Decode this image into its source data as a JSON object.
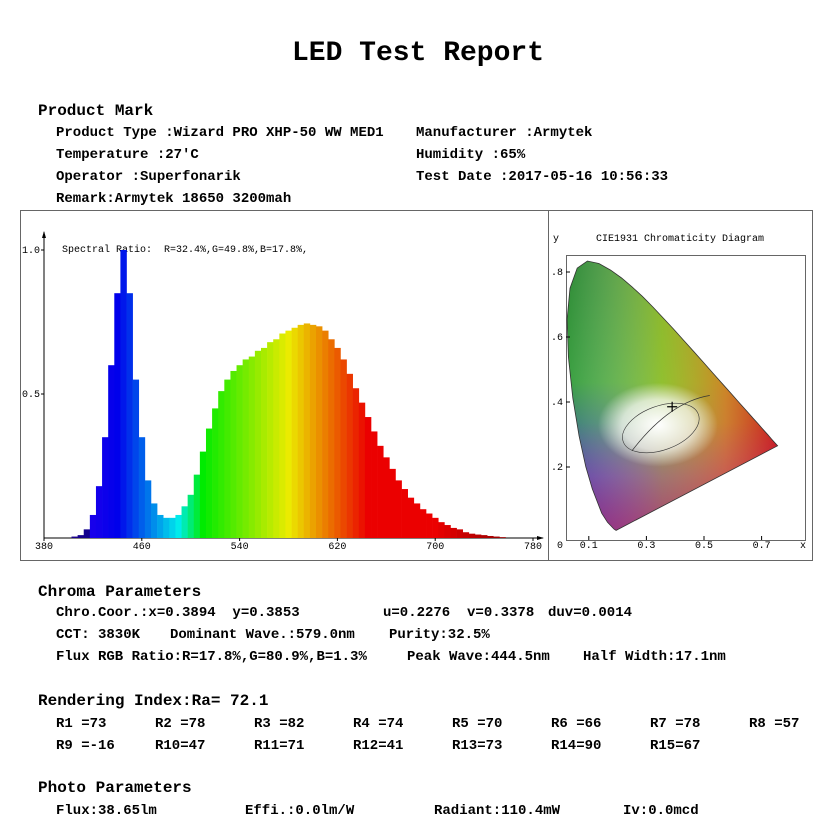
{
  "header": {
    "title": "LED Test Report"
  },
  "product": {
    "heading": "Product Mark",
    "product_type": "Product Type :Wizard PRO XHP-50 WW MED1",
    "manufacturer": "Manufacturer :Armytek",
    "temperature": "Temperature :27'C",
    "humidity": "Humidity :65%",
    "operator": "Operator :Superfonarik",
    "test_date": "Test Date :2017-05-16 10:56:33",
    "remark": "Remark:Armytek 18650 3200mah"
  },
  "chart_data": [
    {
      "type": "bar",
      "annotation": "Spectral Ratio:  R=32.4%,G=49.8%,B=17.8%,",
      "x": [
        380,
        385,
        390,
        395,
        400,
        405,
        410,
        415,
        420,
        425,
        430,
        435,
        440,
        445,
        450,
        455,
        460,
        465,
        470,
        475,
        480,
        485,
        490,
        495,
        500,
        505,
        510,
        515,
        520,
        525,
        530,
        535,
        540,
        545,
        550,
        555,
        560,
        565,
        570,
        575,
        580,
        585,
        590,
        595,
        600,
        605,
        610,
        615,
        620,
        625,
        630,
        635,
        640,
        645,
        650,
        655,
        660,
        665,
        670,
        675,
        680,
        685,
        690,
        695,
        700,
        705,
        710,
        715,
        720,
        725,
        730,
        735,
        740,
        745,
        750,
        755,
        760,
        765,
        770,
        775,
        780
      ],
      "values": [
        0,
        0,
        0,
        0,
        0,
        0.005,
        0.01,
        0.03,
        0.08,
        0.18,
        0.35,
        0.6,
        0.85,
        1.0,
        0.85,
        0.55,
        0.35,
        0.2,
        0.12,
        0.08,
        0.07,
        0.07,
        0.08,
        0.11,
        0.15,
        0.22,
        0.3,
        0.38,
        0.45,
        0.51,
        0.55,
        0.58,
        0.6,
        0.62,
        0.63,
        0.65,
        0.66,
        0.68,
        0.69,
        0.71,
        0.72,
        0.73,
        0.74,
        0.745,
        0.74,
        0.735,
        0.72,
        0.69,
        0.66,
        0.62,
        0.57,
        0.52,
        0.47,
        0.42,
        0.37,
        0.32,
        0.28,
        0.24,
        0.2,
        0.17,
        0.14,
        0.12,
        0.1,
        0.085,
        0.07,
        0.055,
        0.045,
        0.035,
        0.03,
        0.02,
        0.015,
        0.012,
        0.01,
        0.007,
        0.005,
        0.003,
        0,
        0,
        0,
        0,
        0
      ],
      "xlim": [
        380,
        780
      ],
      "ylim": [
        0,
        1
      ],
      "xticks": [
        380,
        460,
        540,
        620,
        700,
        780
      ],
      "yticks": [
        {
          "value": 1,
          "label": "1.0"
        },
        {
          "value": 0.5,
          "label": "0.5"
        }
      ]
    },
    {
      "type": "scatter",
      "title": "CIE1931 Chromaticity Diagram",
      "xlabel": "x",
      "ylabel": "y",
      "x": [
        0.3894
      ],
      "values": [
        0.3853
      ],
      "xticks": [
        0,
        0.1,
        0.3,
        0.5,
        0.7
      ],
      "yticks": [
        {
          "value": 0.8,
          "label": ".8"
        },
        {
          "value": 0.6,
          "label": ".6"
        },
        {
          "value": 0.4,
          "label": ".4"
        },
        {
          "value": 0.2,
          "label": ".2"
        }
      ]
    }
  ],
  "chroma": {
    "heading": "Chroma Parameters",
    "lines": [
      [
        "Chro.Coor.:x=0.3894  y=0.3853",
        "u=0.2276  v=0.3378",
        "duv=0.0014"
      ],
      [
        "CCT: 3830K",
        "Dominant Wave.:579.0nm",
        "Purity:32.5%"
      ],
      [
        "Flux RGB Ratio:R=17.8%,G=80.9%,B=1.3%",
        "Peak Wave:444.5nm",
        "Half Width:17.1nm"
      ]
    ]
  },
  "rendering": {
    "heading": "Rendering Index:Ra= 72.1",
    "items": [
      "R1 =73",
      "R2 =78",
      "R3 =82",
      "R4 =74",
      "R5 =70",
      "R6 =66",
      "R7 =78",
      "R8 =57",
      "R9 =-16",
      "R10=47",
      "R11=71",
      "R12=41",
      "R13=73",
      "R14=90",
      "R15=67"
    ]
  },
  "photo": {
    "heading": "Photo Parameters",
    "items": [
      "Flux:38.65lm",
      "Effi.:0.0lm/W",
      "Radiant:110.4mW",
      "Iv:0.0mcd"
    ]
  }
}
